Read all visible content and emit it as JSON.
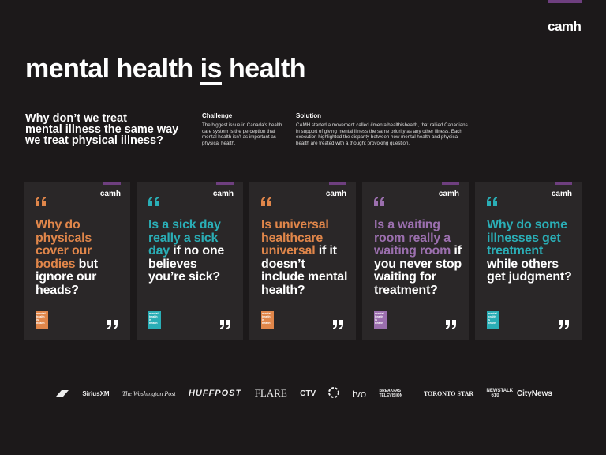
{
  "header": {
    "brand": "camh",
    "title_parts": [
      "mental health",
      "is",
      "health"
    ]
  },
  "intro": {
    "question_lines": [
      "Why don’t we treat",
      "mental illness the same way",
      "we treat physical illness?"
    ],
    "challenge": {
      "heading": "Challenge",
      "body": "The biggest issue in Canada’s health care system is the perception that mental health isn’t as important as physical health."
    },
    "solution": {
      "heading": "Solution",
      "body": "CAMH started a movement called #mentalhealthishealth, that rallied Canadians in support of giving mental illness the same priority as any other illness. Each execution highlighted the disparity between how mental health and physical health are treated with a thought provoking question."
    }
  },
  "posters": [
    {
      "brand": "camh",
      "color": "#e0864a",
      "highlight": "Why do physicals cover our bodies",
      "rest": "but ignore our heads?",
      "badge": "mental health is health"
    },
    {
      "brand": "camh",
      "color": "#2aaeb6",
      "highlight": "Is a sick day really a sick day",
      "rest": "if no one believes you’re sick?",
      "badge": "mental health is health"
    },
    {
      "brand": "camh",
      "color": "#e0864a",
      "highlight": "Is universal healthcare universal",
      "rest": "if it doesn’t include mental health?",
      "badge": "mental health is health"
    },
    {
      "brand": "camh",
      "color": "#9b6fae",
      "highlight": "Is a waiting room really a waiting room",
      "rest": "if you never stop waiting for treatment?",
      "badge": "mental health is health"
    },
    {
      "brand": "camh",
      "color": "#2aaeb6",
      "highlight": "Why do some illnesses get treatment",
      "rest": "while others get judgment?",
      "badge": "mental health is health"
    }
  ],
  "media_logos": [
    "SiriusXM",
    "The Washington Post",
    "HUFFPOST",
    "FLARE",
    "CTV",
    "tvo",
    "BREAKFAST TELEVISION",
    "TORONTO STAR",
    "NEWSTALK 610",
    "CityNews"
  ]
}
